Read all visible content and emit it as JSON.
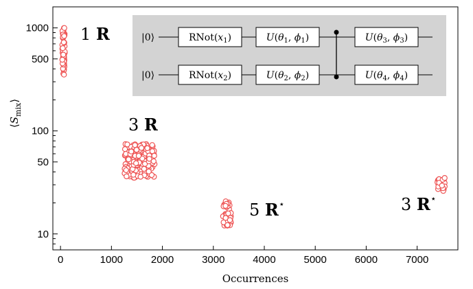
{
  "chart_data": {
    "type": "scatter",
    "xlabel": "Occurrences",
    "ylabel": "⟨S_mix⟩",
    "xlim": [
      -150,
      7800
    ],
    "ylim": [
      7,
      1600
    ],
    "yscale": "log",
    "x_ticks": [
      0,
      1000,
      2000,
      3000,
      4000,
      5000,
      6000,
      7000
    ],
    "y_ticks": [
      10,
      50,
      100,
      500,
      1000
    ],
    "marker": "open-circle",
    "marker_color": "#ee5555",
    "grid": false,
    "clusters": [
      {
        "label": "1 R",
        "x_center": 60,
        "x_spread": 25,
        "y_min": 350,
        "y_max": 1000,
        "count": 60
      },
      {
        "label": "3 R",
        "x_center": 1550,
        "x_spread": 300,
        "y_min": 35,
        "y_max": 75,
        "count": 160
      },
      {
        "label": "5 R⋆",
        "x_center": 3270,
        "x_spread": 80,
        "y_min": 12,
        "y_max": 21,
        "count": 45
      },
      {
        "label": "3 R⋆",
        "x_center": 7470,
        "x_spread": 90,
        "y_min": 26,
        "y_max": 35,
        "count": 20
      }
    ]
  },
  "circuit": {
    "kets": [
      "|0⟩",
      "|0⟩"
    ],
    "row1_gates": [
      "RNot(x₁)",
      "U(θ₁, ϕ₁)",
      "U(θ₃, ϕ₃)"
    ],
    "row2_gates": [
      "RNot(x₂)",
      "U(θ₂, ϕ₂)",
      "U(θ₄, ϕ₄)"
    ],
    "background_color": "#d3d3d3"
  }
}
